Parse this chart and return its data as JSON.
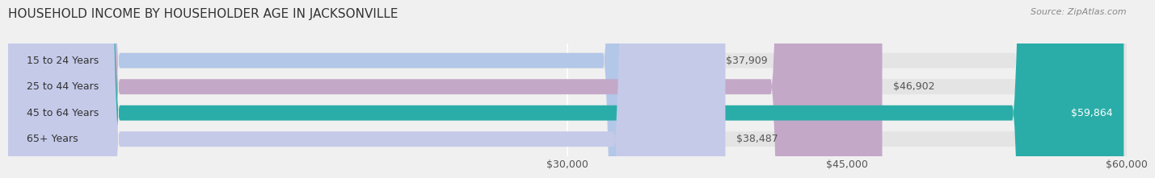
{
  "title": "HOUSEHOLD INCOME BY HOUSEHOLDER AGE IN JACKSONVILLE",
  "source": "Source: ZipAtlas.com",
  "categories": [
    "15 to 24 Years",
    "25 to 44 Years",
    "45 to 64 Years",
    "65+ Years"
  ],
  "values": [
    37909,
    46902,
    59864,
    38487
  ],
  "bar_colors": [
    "#b3c7e8",
    "#c4a8c8",
    "#2aada8",
    "#c5cae9"
  ],
  "bar_labels": [
    "$37,909",
    "$46,902",
    "$59,864",
    "$38,487"
  ],
  "label_on_bar": [
    false,
    false,
    true,
    false
  ],
  "xmax": 60000,
  "xticks": [
    30000,
    45000,
    60000
  ],
  "xtick_labels": [
    "$30,000",
    "$45,000",
    "$60,000"
  ],
  "background_color": "#f0f0f0",
  "bar_background_color": "#e4e4e4",
  "title_fontsize": 11,
  "source_fontsize": 8,
  "tick_fontsize": 9,
  "label_fontsize": 9,
  "category_fontsize": 9,
  "bar_height": 0.58
}
